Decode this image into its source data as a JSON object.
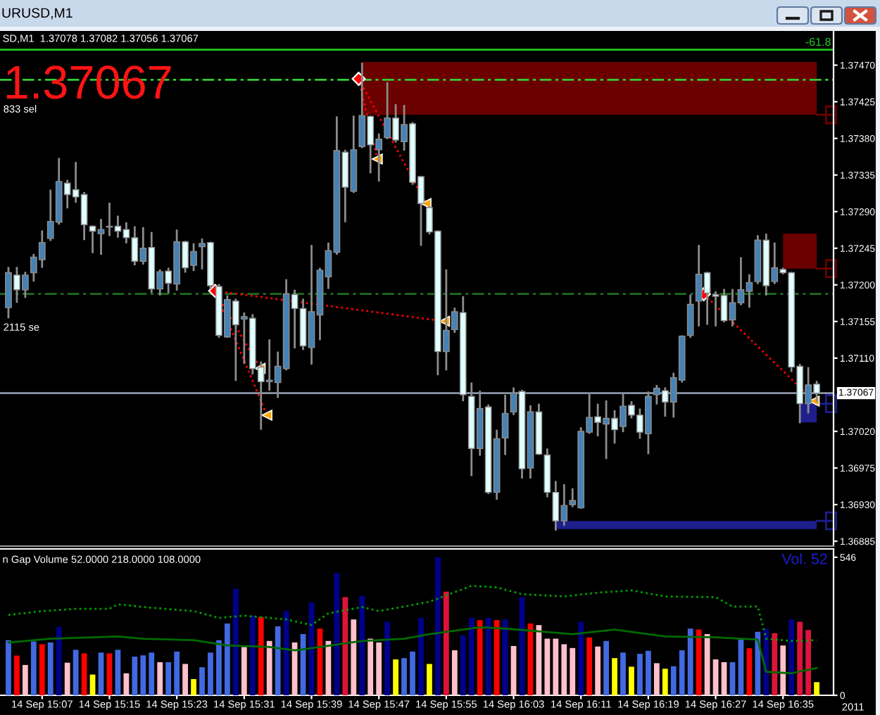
{
  "chart_data": [
    {
      "type": "candlestick",
      "title": "SD,M1  1.37078 1.37082 1.37056 1.37067",
      "x": [
        "2011-09-14T15:03",
        "2011-09-14T15:04",
        "2011-09-14T15:05",
        "2011-09-14T15:06",
        "2011-09-14T15:07",
        "2011-09-14T15:08",
        "2011-09-14T15:09",
        "2011-09-14T15:10",
        "2011-09-14T15:11",
        "2011-09-14T15:12",
        "2011-09-14T15:13",
        "2011-09-14T15:14",
        "2011-09-14T15:15",
        "2011-09-14T15:16",
        "2011-09-14T15:17",
        "2011-09-14T15:18",
        "2011-09-14T15:19",
        "2011-09-14T15:20",
        "2011-09-14T15:21",
        "2011-09-14T15:22",
        "2011-09-14T15:23",
        "2011-09-14T15:24",
        "2011-09-14T15:25",
        "2011-09-14T15:26",
        "2011-09-14T15:27",
        "2011-09-14T15:28",
        "2011-09-14T15:29",
        "2011-09-14T15:30",
        "2011-09-14T15:31",
        "2011-09-14T15:32",
        "2011-09-14T15:33",
        "2011-09-14T15:34",
        "2011-09-14T15:35",
        "2011-09-14T15:36",
        "2011-09-14T15:37",
        "2011-09-14T15:38",
        "2011-09-14T15:39",
        "2011-09-14T15:40",
        "2011-09-14T15:41",
        "2011-09-14T15:42",
        "2011-09-14T15:43",
        "2011-09-14T15:44",
        "2011-09-14T15:45",
        "2011-09-14T15:46",
        "2011-09-14T15:47",
        "2011-09-14T15:48",
        "2011-09-14T15:49",
        "2011-09-14T15:50",
        "2011-09-14T15:51",
        "2011-09-14T15:52",
        "2011-09-14T15:53",
        "2011-09-14T15:54",
        "2011-09-14T15:55",
        "2011-09-14T15:56",
        "2011-09-14T15:57",
        "2011-09-14T15:58",
        "2011-09-14T15:59",
        "2011-09-14T16:00",
        "2011-09-14T16:01",
        "2011-09-14T16:02",
        "2011-09-14T16:03",
        "2011-09-14T16:04",
        "2011-09-14T16:05",
        "2011-09-14T16:06",
        "2011-09-14T16:07",
        "2011-09-14T16:08",
        "2011-09-14T16:09",
        "2011-09-14T16:10",
        "2011-09-14T16:11",
        "2011-09-14T16:12",
        "2011-09-14T16:13",
        "2011-09-14T16:14",
        "2011-09-14T16:15",
        "2011-09-14T16:16",
        "2011-09-14T16:17",
        "2011-09-14T16:18",
        "2011-09-14T16:19",
        "2011-09-14T16:20",
        "2011-09-14T16:21",
        "2011-09-14T16:22",
        "2011-09-14T16:23",
        "2011-09-14T16:24",
        "2011-09-14T16:25",
        "2011-09-14T16:26",
        "2011-09-14T16:27",
        "2011-09-14T16:28",
        "2011-09-14T16:29",
        "2011-09-14T16:30",
        "2011-09-14T16:31",
        "2011-09-14T16:32",
        "2011-09-14T16:33",
        "2011-09-14T16:34",
        "2011-09-14T16:35",
        "2011-09-14T16:36",
        "2011-09-14T16:37",
        "2011-09-14T16:38",
        "2011-09-14T16:39"
      ],
      "ohlc": [
        [
          1.37172,
          1.37222,
          1.37159,
          1.37215
        ],
        [
          1.37212,
          1.37222,
          1.37178,
          1.37194
        ],
        [
          1.37194,
          1.37216,
          1.37184,
          1.37212
        ],
        [
          1.37215,
          1.37238,
          1.37204,
          1.37234
        ],
        [
          1.37231,
          1.37267,
          1.37221,
          1.37252
        ],
        [
          1.37257,
          1.37317,
          1.37254,
          1.37278
        ],
        [
          1.37277,
          1.37356,
          1.37274,
          1.37327
        ],
        [
          1.37325,
          1.37329,
          1.37294,
          1.37311
        ],
        [
          1.37317,
          1.37351,
          1.37301,
          1.37308
        ],
        [
          1.37311,
          1.37314,
          1.37255,
          1.37274
        ],
        [
          1.37272,
          1.37273,
          1.37239,
          1.37266
        ],
        [
          1.37263,
          1.37281,
          1.37237,
          1.37268
        ],
        [
          1.37272,
          1.37301,
          1.3726,
          1.37271
        ],
        [
          1.37272,
          1.37285,
          1.37258,
          1.37266
        ],
        [
          1.37268,
          1.37277,
          1.37251,
          1.37258
        ],
        [
          1.37258,
          1.37272,
          1.37224,
          1.37229
        ],
        [
          1.37229,
          1.37271,
          1.37225,
          1.37245
        ],
        [
          1.37246,
          1.37265,
          1.3719,
          1.37195
        ],
        [
          1.37195,
          1.37219,
          1.37187,
          1.37216
        ],
        [
          1.37217,
          1.37221,
          1.3719,
          1.37202
        ],
        [
          1.37201,
          1.37268,
          1.37193,
          1.37253
        ],
        [
          1.37253,
          1.37254,
          1.37215,
          1.37221
        ],
        [
          1.37224,
          1.37251,
          1.37217,
          1.37241
        ],
        [
          1.37247,
          1.37257,
          1.37219,
          1.37251
        ],
        [
          1.37252,
          1.37253,
          1.37195,
          1.37199
        ],
        [
          1.37198,
          1.37201,
          1.37135,
          1.37138
        ],
        [
          1.37136,
          1.37187,
          1.37135,
          1.37182
        ],
        [
          1.3718,
          1.37183,
          1.37082,
          1.37151
        ],
        [
          1.37158,
          1.37166,
          1.37103,
          1.37161
        ],
        [
          1.37159,
          1.37164,
          1.3709,
          1.37097
        ],
        [
          1.37099,
          1.37106,
          1.37022,
          1.37081
        ],
        [
          1.37081,
          1.37133,
          1.3707,
          1.37083
        ],
        [
          1.3708,
          1.37118,
          1.37061,
          1.371
        ],
        [
          1.37097,
          1.37207,
          1.37095,
          1.37189
        ],
        [
          1.37188,
          1.37194,
          1.37122,
          1.37171
        ],
        [
          1.37171,
          1.37183,
          1.3712,
          1.37125
        ],
        [
          1.37123,
          1.37249,
          1.37102,
          1.37167
        ],
        [
          1.37163,
          1.37221,
          1.37132,
          1.37218
        ],
        [
          1.3721,
          1.37252,
          1.37195,
          1.37242
        ],
        [
          1.3724,
          1.37407,
          1.37237,
          1.37365
        ],
        [
          1.37363,
          1.37366,
          1.37277,
          1.3732
        ],
        [
          1.37315,
          1.37408,
          1.37313,
          1.37366
        ],
        [
          1.3737,
          1.37473,
          1.37368,
          1.37408
        ],
        [
          1.37407,
          1.37408,
          1.37337,
          1.37372
        ],
        [
          1.37366,
          1.37386,
          1.37327,
          1.37379
        ],
        [
          1.37381,
          1.37449,
          1.37379,
          1.37405
        ],
        [
          1.37405,
          1.37422,
          1.37375,
          1.37378
        ],
        [
          1.37376,
          1.37421,
          1.37365,
          1.37397
        ],
        [
          1.37398,
          1.374,
          1.37323,
          1.37326
        ],
        [
          1.37333,
          1.37334,
          1.37248,
          1.373
        ],
        [
          1.37295,
          1.37297,
          1.37262,
          1.37265
        ],
        [
          1.37266,
          1.37267,
          1.37089,
          1.37118
        ],
        [
          1.37118,
          1.37219,
          1.37095,
          1.37144
        ],
        [
          1.37145,
          1.37172,
          1.37141,
          1.37167
        ],
        [
          1.37166,
          1.37186,
          1.37057,
          1.37065
        ],
        [
          1.37063,
          1.3708,
          1.36965,
          1.36999
        ],
        [
          1.36999,
          1.3707,
          1.3699,
          1.37048
        ],
        [
          1.3705,
          1.37053,
          1.36943,
          1.36945
        ],
        [
          1.36945,
          1.37022,
          1.36936,
          1.37011
        ],
        [
          1.37012,
          1.37065,
          1.36991,
          1.37042
        ],
        [
          1.37044,
          1.37074,
          1.3704,
          1.37067
        ],
        [
          1.37069,
          1.37071,
          1.36962,
          1.36974
        ],
        [
          1.36975,
          1.37052,
          1.36962,
          1.37044
        ],
        [
          1.37044,
          1.37054,
          1.36991,
          1.36992
        ],
        [
          1.36991,
          1.36999,
          1.36939,
          1.36945
        ],
        [
          1.36945,
          1.36959,
          1.36898,
          1.3691
        ],
        [
          1.3691,
          1.36955,
          1.36904,
          1.36929
        ],
        [
          1.3693,
          1.3695,
          1.36927,
          1.36935
        ],
        [
          1.36926,
          1.37025,
          1.36925,
          1.3702
        ],
        [
          1.37019,
          1.37067,
          1.37017,
          1.37037
        ],
        [
          1.37038,
          1.37054,
          1.37014,
          1.37031
        ],
        [
          1.37029,
          1.37058,
          1.36986,
          1.37036
        ],
        [
          1.37036,
          1.37046,
          1.37005,
          1.37022
        ],
        [
          1.37026,
          1.37067,
          1.37019,
          1.37051
        ],
        [
          1.37052,
          1.37057,
          1.37036,
          1.3704
        ],
        [
          1.3704,
          1.37048,
          1.37011,
          1.37019
        ],
        [
          1.37017,
          1.37069,
          1.36992,
          1.37063
        ],
        [
          1.37065,
          1.37077,
          1.37053,
          1.37073
        ],
        [
          1.3707,
          1.37074,
          1.37038,
          1.37056
        ],
        [
          1.37056,
          1.37092,
          1.37037,
          1.37086
        ],
        [
          1.37083,
          1.37138,
          1.3708,
          1.37137
        ],
        [
          1.37138,
          1.37188,
          1.37135,
          1.37176
        ],
        [
          1.3718,
          1.37249,
          1.37149,
          1.37213
        ],
        [
          1.37215,
          1.37216,
          1.37151,
          1.3719
        ],
        [
          1.37188,
          1.37192,
          1.37149,
          1.37186
        ],
        [
          1.37187,
          1.37195,
          1.37154,
          1.37156
        ],
        [
          1.37157,
          1.37195,
          1.37149,
          1.37178
        ],
        [
          1.37178,
          1.37234,
          1.37175,
          1.37194
        ],
        [
          1.37192,
          1.37213,
          1.37172,
          1.37203
        ],
        [
          1.37204,
          1.37261,
          1.37201,
          1.37255
        ],
        [
          1.37255,
          1.37263,
          1.37187,
          1.37199
        ],
        [
          1.37204,
          1.37252,
          1.37201,
          1.37221
        ],
        [
          1.37219,
          1.37221,
          1.37213,
          1.37215
        ],
        [
          1.37215,
          1.37216,
          1.37093,
          1.37099
        ],
        [
          1.371,
          1.37103,
          1.3703,
          1.37054
        ],
        [
          1.37054,
          1.37099,
          1.37042,
          1.37077
        ],
        [
          1.37078,
          1.37082,
          1.37056,
          1.37067
        ]
      ],
      "colors": [
        "#4682b4",
        "#e0ffff",
        "#4682b4",
        "#4682b4",
        "#4682b4",
        "#4682b4",
        "#4682b4",
        "#e0ffff",
        "#e0ffff",
        "#e0ffff",
        "#e0ffff",
        "#4682b4",
        "#e0ffff",
        "#e0ffff",
        "#e0ffff",
        "#e0ffff",
        "#4682b4",
        "#e0ffff",
        "#4682b4",
        "#e0ffff",
        "#4682b4",
        "#e0ffff",
        "#4682b4",
        "#4682b4",
        "#e0ffff",
        "#e0ffff",
        "#4682b4",
        "#e0ffff",
        "#4682b4",
        "#e0ffff",
        "#e0ffff",
        "#4682b4",
        "#4682b4",
        "#4682b4",
        "#e0ffff",
        "#e0ffff",
        "#4682b4",
        "#4682b4",
        "#4682b4",
        "#4682b4",
        "#e0ffff",
        "#4682b4",
        "#4682b4",
        "#e0ffff",
        "#4682b4",
        "#4682b4",
        "#e0ffff",
        "#4682b4",
        "#e0ffff",
        "#e0ffff",
        "#e0ffff",
        "#e0ffff",
        "#4682b4",
        "#4682b4",
        "#e0ffff",
        "#e0ffff",
        "#4682b4",
        "#e0ffff",
        "#4682b4",
        "#4682b4",
        "#4682b4",
        "#e0ffff",
        "#4682b4",
        "#e0ffff",
        "#e0ffff",
        "#e0ffff",
        "#4682b4",
        "#4682b4",
        "#4682b4",
        "#4682b4",
        "#e0ffff",
        "#4682b4",
        "#e0ffff",
        "#4682b4",
        "#e0ffff",
        "#e0ffff",
        "#4682b4",
        "#4682b4",
        "#e0ffff",
        "#4682b4",
        "#4682b4",
        "#4682b4",
        "#4682b4",
        "#e0ffff",
        "#e0ffff",
        "#e0ffff",
        "#4682b4",
        "#4682b4",
        "#4682b4",
        "#4682b4",
        "#e0ffff",
        "#4682b4",
        "#e0ffff",
        "#e0ffff",
        "#e0ffff",
        "#4682b4",
        "#e0ffff"
      ],
      "xlim": [
        "2011-09-14T15:02",
        "2011-09-14T16:41"
      ],
      "ylim": [
        1.36879,
        1.37512
      ],
      "yticks": [
        {
          "value": 1.3747,
          "label": "1.37470"
        },
        {
          "value": 1.37425,
          "label": "1.37425"
        },
        {
          "value": 1.3738,
          "label": "1.37380"
        },
        {
          "value": 1.37335,
          "label": "1.37335"
        },
        {
          "value": 1.3729,
          "label": "1.37290"
        },
        {
          "value": 1.37245,
          "label": "1.37245"
        },
        {
          "value": 1.372,
          "label": "1.37200"
        },
        {
          "value": 1.37155,
          "label": "1.37155"
        },
        {
          "value": 1.3711,
          "label": "1.37110"
        },
        {
          "value": 1.3702,
          "label": "1.37020"
        },
        {
          "value": 1.36975,
          "label": "1.36975"
        },
        {
          "value": 1.3693,
          "label": "1.36930"
        },
        {
          "value": 1.36885,
          "label": "1.36885"
        }
      ],
      "tick_labels": "y",
      "ref_lines": [
        {
          "axis": "y",
          "value": 1.37489,
          "color": "#22c822",
          "line_style": "solid"
        },
        {
          "axis": "y",
          "value": 1.37452,
          "color": "#32cd32",
          "line_style": "dashed"
        },
        {
          "axis": "y",
          "value": 1.37189,
          "color": "#1e6e1e",
          "line_style": "dashed"
        },
        {
          "axis": "y",
          "value": 1.37067,
          "label": "1.37067",
          "color": "#8c96a8",
          "line_style": "solid"
        }
      ],
      "series": [
        {
          "type": "line",
          "x": [
            "2011-09-14T15:45",
            "2011-09-14T16:39"
          ],
          "values": [
            null,
            null
          ],
          "lower": [
            1.37409,
            1.37409
          ],
          "upper": [
            1.37474,
            1.37474
          ],
          "color": "#6b0000"
        },
        {
          "type": "line",
          "x": [
            "2011-09-14T16:35",
            "2011-09-14T16:39"
          ],
          "values": [
            null,
            null
          ],
          "lower": [
            1.3722,
            1.3722
          ],
          "upper": [
            1.37263,
            1.37263
          ],
          "color": "#6b0000"
        },
        {
          "type": "line",
          "x": [
            "2011-09-14T16:08",
            "2011-09-14T16:39"
          ],
          "values": [
            null,
            null
          ],
          "lower": [
            1.369,
            1.369
          ],
          "upper": [
            1.3691,
            1.3691
          ],
          "color": "#1e1e8c"
        },
        {
          "type": "line",
          "x": [
            "2011-09-14T16:37",
            "2011-09-14T16:39"
          ],
          "values": [
            null,
            null
          ],
          "lower": [
            1.37031,
            1.37031
          ],
          "upper": [
            1.37054,
            1.37054
          ],
          "color": "#1e1e8c"
        }
      ],
      "annotations": [
        "1.37067",
        "URUSD,M1",
        "-61.8",
        "833 sel",
        "2115 se"
      ]
    },
    {
      "type": "bar",
      "title": "n Gap Volume 52.0000 218.0000 108.0000",
      "x": [
        "2011-09-14T15:03",
        "2011-09-14T15:04",
        "2011-09-14T15:05",
        "2011-09-14T15:06",
        "2011-09-14T15:07",
        "2011-09-14T15:08",
        "2011-09-14T15:09",
        "2011-09-14T15:10",
        "2011-09-14T15:11",
        "2011-09-14T15:12",
        "2011-09-14T15:13",
        "2011-09-14T15:14",
        "2011-09-14T15:15",
        "2011-09-14T15:16",
        "2011-09-14T15:17",
        "2011-09-14T15:18",
        "2011-09-14T15:19",
        "2011-09-14T15:20",
        "2011-09-14T15:21",
        "2011-09-14T15:22",
        "2011-09-14T15:23",
        "2011-09-14T15:24",
        "2011-09-14T15:25",
        "2011-09-14T15:26",
        "2011-09-14T15:27",
        "2011-09-14T15:28",
        "2011-09-14T15:29",
        "2011-09-14T15:30",
        "2011-09-14T15:31",
        "2011-09-14T15:32",
        "2011-09-14T15:33",
        "2011-09-14T15:34",
        "2011-09-14T15:35",
        "2011-09-14T15:36",
        "2011-09-14T15:37",
        "2011-09-14T15:38",
        "2011-09-14T15:39",
        "2011-09-14T15:40",
        "2011-09-14T15:41",
        "2011-09-14T15:42",
        "2011-09-14T15:43",
        "2011-09-14T15:44",
        "2011-09-14T15:45",
        "2011-09-14T15:46",
        "2011-09-14T15:47",
        "2011-09-14T15:48",
        "2011-09-14T15:49",
        "2011-09-14T15:50",
        "2011-09-14T15:51",
        "2011-09-14T15:52",
        "2011-09-14T15:53",
        "2011-09-14T15:54",
        "2011-09-14T15:55",
        "2011-09-14T15:56",
        "2011-09-14T15:57",
        "2011-09-14T15:58",
        "2011-09-14T15:59",
        "2011-09-14T16:00",
        "2011-09-14T16:01",
        "2011-09-14T16:02",
        "2011-09-14T16:03",
        "2011-09-14T16:04",
        "2011-09-14T16:05",
        "2011-09-14T16:06",
        "2011-09-14T16:07",
        "2011-09-14T16:08",
        "2011-09-14T16:09",
        "2011-09-14T16:10",
        "2011-09-14T16:11",
        "2011-09-14T16:12",
        "2011-09-14T16:13",
        "2011-09-14T16:14",
        "2011-09-14T16:15",
        "2011-09-14T16:16",
        "2011-09-14T16:17",
        "2011-09-14T16:18",
        "2011-09-14T16:19",
        "2011-09-14T16:20",
        "2011-09-14T16:21",
        "2011-09-14T16:22",
        "2011-09-14T16:23",
        "2011-09-14T16:24",
        "2011-09-14T16:25",
        "2011-09-14T16:26",
        "2011-09-14T16:27",
        "2011-09-14T16:28",
        "2011-09-14T16:29",
        "2011-09-14T16:30",
        "2011-09-14T16:31",
        "2011-09-14T16:32",
        "2011-09-14T16:33",
        "2011-09-14T16:34",
        "2011-09-14T16:35",
        "2011-09-14T16:36",
        "2011-09-14T16:37",
        "2011-09-14T16:38",
        "2011-09-14T16:39"
      ],
      "series": [
        {
          "values": [
            218,
            157,
            120,
            213,
            202,
            209,
            271,
            129,
            180,
            166,
            82,
            169,
            166,
            180,
            87,
            153,
            158,
            169,
            131,
            131,
            173,
            124,
            64,
            111,
            169,
            218,
            284,
            422,
            191,
            315,
            310,
            215,
            273,
            333,
            209,
            242,
            366,
            264,
            215,
            484,
            388,
            300,
            393,
            224,
            209,
            291,
            142,
            147,
            173,
            306,
            124,
            546,
            410,
            178,
            237,
            306,
            297,
            306,
            297,
            300,
            195,
            388,
            284,
            278,
            224,
            224,
            202,
            187,
            291,
            229,
            193,
            215,
            147,
            169,
            113,
            164,
            176,
            127,
            105,
            115,
            178,
            264,
            260,
            242,
            142,
            131,
            131,
            220,
            186,
            251,
            264,
            246,
            197,
            300,
            291,
            258,
            52
          ],
          "colors": [
            "#4169e1",
            "#ff0000",
            "#ffc0cb",
            "#4169e1",
            "#ff0000",
            "#4169e1",
            "#00008b",
            "#ffc0cb",
            "#4169e1",
            "#ff0000",
            "#ffff00",
            "#4169e1",
            "#ff0000",
            "#4169e1",
            "#ffc0cb",
            "#4169e1",
            "#4169e1",
            "#4169e1",
            "#ffc0cb",
            "#4169e1",
            "#4169e1",
            "#ffc0cb",
            "#ffff00",
            "#4169e1",
            "#4169e1",
            "#4169e1",
            "#4169e1",
            "#00008b",
            "#ffc0cb",
            "#00008b",
            "#ff0000",
            "#ffc0cb",
            "#4169e1",
            "#00008b",
            "#ffc0cb",
            "#4169e1",
            "#00008b",
            "#ff0000",
            "#ffc0cb",
            "#00008b",
            "#dc143c",
            "#ffc0cb",
            "#00008b",
            "#ffc0cb",
            "#ffc0cb",
            "#00008b",
            "#ffff00",
            "#4169e1",
            "#4169e1",
            "#00008b",
            "#ffff00",
            "#00008b",
            "#dc143c",
            "#ffc0cb",
            "#00008b",
            "#00008b",
            "#ff0000",
            "#00008b",
            "#ff0000",
            "#00008b",
            "#ffc0cb",
            "#00008b",
            "#ff0000",
            "#ffc0cb",
            "#ffc0cb",
            "#ffc0cb",
            "#ffc0cb",
            "#ffc0cb",
            "#00008b",
            "#ff0000",
            "#ffc0cb",
            "#4169e1",
            "#ffff00",
            "#4169e1",
            "#ffff00",
            "#4169e1",
            "#4169e1",
            "#ffc0cb",
            "#ffff00",
            "#4169e1",
            "#4169e1",
            "#4169e1",
            "#ff0000",
            "#ffc0cb",
            "#ffc0cb",
            "#ffc0cb",
            "#4169e1",
            "#4169e1",
            "#ff0000",
            "#4169e1",
            "#00008b",
            "#dc143c",
            "#ffc0cb",
            "#00008b",
            "#dc143c",
            "#dc143c",
            "#ffff00"
          ]
        },
        {
          "type": "line",
          "x": [
            "2011-09-14T15:03",
            "2011-09-14T15:07",
            "2011-09-14T15:11",
            "2011-09-14T15:15",
            "2011-09-14T15:16",
            "2011-09-14T15:19",
            "2011-09-14T15:25",
            "2011-09-14T15:28",
            "2011-09-14T15:31",
            "2011-09-14T15:36",
            "2011-09-14T15:39",
            "2011-09-14T15:41",
            "2011-09-14T15:45",
            "2011-09-14T15:47",
            "2011-09-14T15:50",
            "2011-09-14T15:53",
            "2011-09-14T15:58",
            "2011-09-14T16:01",
            "2011-09-14T16:04",
            "2011-09-14T16:09",
            "2011-09-14T16:13",
            "2011-09-14T16:17",
            "2011-09-14T16:21",
            "2011-09-14T16:27",
            "2011-09-14T16:29",
            "2011-09-14T16:32",
            "2011-09-14T16:33",
            "2011-09-14T16:36",
            "2011-09-14T16:39"
          ],
          "values": [
            318,
            333,
            342,
            342,
            360,
            349,
            333,
            306,
            315,
            300,
            278,
            324,
            349,
            333,
            351,
            370,
            433,
            427,
            400,
            391,
            406,
            415,
            391,
            388,
            351,
            351,
            224,
            215,
            218
          ],
          "color": "#00a000",
          "line_style": "dotted"
        },
        {
          "type": "line",
          "x": [
            "2011-09-14T15:03",
            "2011-09-14T15:08",
            "2011-09-14T15:16",
            "2011-09-14T15:19",
            "2011-09-14T15:25",
            "2011-09-14T15:29",
            "2011-09-14T15:34",
            "2011-09-14T15:37",
            "2011-09-14T15:40",
            "2011-09-14T15:45",
            "2011-09-14T15:50",
            "2011-09-14T15:53",
            "2011-09-14T15:59",
            "2011-09-14T16:02",
            "2011-09-14T16:10",
            "2011-09-14T16:15",
            "2011-09-14T16:21",
            "2011-09-14T16:27",
            "2011-09-14T16:32",
            "2011-09-14T16:33",
            "2011-09-14T16:36",
            "2011-09-14T16:39"
          ],
          "values": [
            209,
            224,
            233,
            224,
            218,
            197,
            191,
            178,
            191,
            215,
            224,
            242,
            269,
            264,
            242,
            260,
            233,
            229,
            220,
            93,
            87,
            108
          ],
          "color": "#006a00",
          "line_style": "solid"
        }
      ],
      "xlim": [
        "2011-09-14T15:02",
        "2011-09-14T16:41"
      ],
      "xticks": [
        {
          "value": "2011-09-14T15:07",
          "label": "14 Sep 15:07"
        },
        {
          "value": "2011-09-14T15:15",
          "label": "14 Sep 15:15"
        },
        {
          "value": "2011-09-14T15:23",
          "label": "14 Sep 15:23"
        },
        {
          "value": "2011-09-14T15:31",
          "label": "14 Sep 15:31"
        },
        {
          "value": "2011-09-14T15:39",
          "label": "14 Sep 15:39"
        },
        {
          "value": "2011-09-14T15:47",
          "label": "14 Sep 15:47"
        },
        {
          "value": "2011-09-14T15:55",
          "label": "14 Sep 15:55"
        },
        {
          "value": "2011-09-14T16:03",
          "label": "14 Sep 16:03"
        },
        {
          "value": "2011-09-14T16:11",
          "label": "14 Sep 16:11"
        },
        {
          "value": "2011-09-14T16:19",
          "label": "14 Sep 16:19"
        },
        {
          "value": "2011-09-14T16:27",
          "label": "14 Sep 16:27"
        },
        {
          "value": "2011-09-14T16:35",
          "label": "14 Sep 16:35"
        }
      ],
      "ylim": [
        0,
        579
      ],
      "yticks": [
        546,
        0
      ],
      "annotations": [
        "Vol. 52",
        "2011"
      ]
    }
  ]
}
